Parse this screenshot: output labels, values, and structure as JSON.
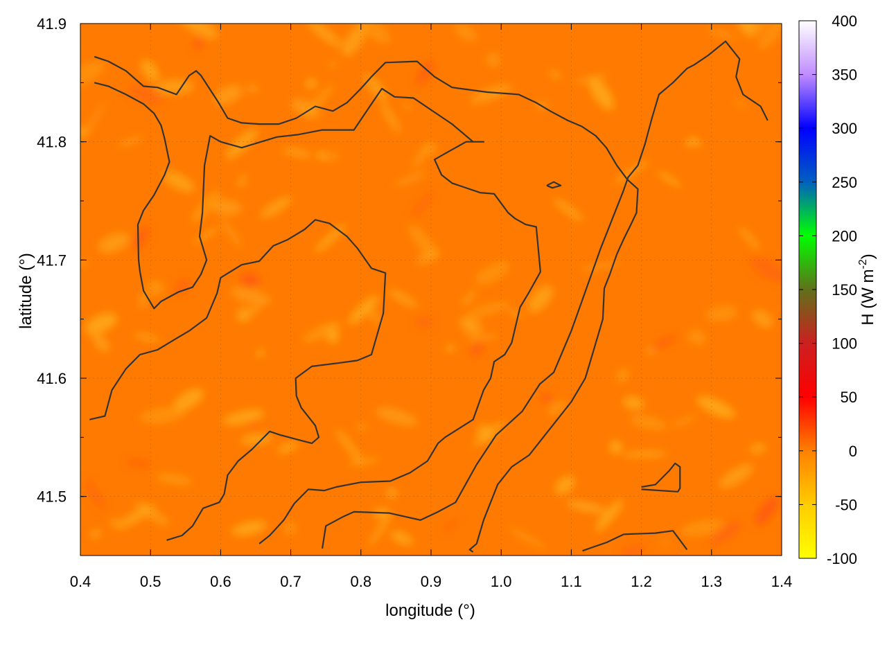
{
  "chart_data": {
    "type": "heatmap",
    "title": "",
    "xlabel": "longitude (°)",
    "ylabel": "latitude (°)",
    "xlim": [
      0.4,
      1.4
    ],
    "ylim": [
      41.45,
      41.9
    ],
    "x_ticks": [
      "0.4",
      "0.5",
      "0.6",
      "0.7",
      "0.8",
      "0.9",
      "1.0",
      "1.1",
      "1.2",
      "1.3",
      "1.4"
    ],
    "y_ticks": [
      "41.5",
      "41.6",
      "41.7",
      "41.8",
      "41.9"
    ],
    "y_tick_values": [
      41.5,
      41.6,
      41.7,
      41.8,
      41.9
    ],
    "grid": true,
    "colorbar": {
      "label": "H (W m-2)",
      "min": -100,
      "max": 400,
      "ticks": [
        "-100",
        "-50",
        "0",
        "50",
        "100",
        "150",
        "200",
        "250",
        "300",
        "350",
        "400"
      ],
      "palette": [
        {
          "value": -100,
          "color": "#ffff00"
        },
        {
          "value": -50,
          "color": "#ffcc00"
        },
        {
          "value": 0,
          "color": "#ff8000"
        },
        {
          "value": 50,
          "color": "#ff0000"
        },
        {
          "value": 100,
          "color": "#cc2020"
        },
        {
          "value": 150,
          "color": "#60701a"
        },
        {
          "value": 200,
          "color": "#00ff00"
        },
        {
          "value": 250,
          "color": "#0060c0"
        },
        {
          "value": 300,
          "color": "#0000ff"
        },
        {
          "value": 350,
          "color": "#c08cff"
        },
        {
          "value": 400,
          "color": "#ffffff"
        }
      ]
    },
    "field_summary": {
      "dominant_value": -5,
      "range_shown": [
        -40,
        15
      ],
      "dominant_color": "#ff7a00",
      "light_streak_color": "#ffa81a",
      "hot_spot_color": "#ff5a10"
    },
    "contours": [
      [
        [
          0.42,
          41.872
        ],
        [
          0.44,
          41.868
        ],
        [
          0.465,
          41.86
        ],
        [
          0.49,
          41.847
        ],
        [
          0.51,
          41.846
        ],
        [
          0.537,
          41.84
        ],
        [
          0.555,
          41.856
        ],
        [
          0.565,
          41.86
        ],
        [
          0.572,
          41.856
        ],
        [
          0.596,
          41.834
        ],
        [
          0.61,
          41.82
        ],
        [
          0.63,
          41.816
        ],
        [
          0.655,
          41.815
        ],
        [
          0.683,
          41.815
        ],
        [
          0.708,
          41.82
        ],
        [
          0.735,
          41.83
        ],
        [
          0.76,
          41.826
        ],
        [
          0.78,
          41.833
        ],
        [
          0.8,
          41.845
        ],
        [
          0.815,
          41.855
        ],
        [
          0.835,
          41.867
        ],
        [
          0.88,
          41.868
        ],
        [
          0.905,
          41.855
        ],
        [
          0.93,
          41.846
        ],
        [
          0.98,
          41.842
        ],
        [
          1.025,
          41.84
        ],
        [
          1.05,
          41.833
        ],
        [
          1.07,
          41.826
        ],
        [
          1.095,
          41.818
        ],
        [
          1.115,
          41.813
        ],
        [
          1.135,
          41.805
        ],
        [
          1.15,
          41.795
        ],
        [
          1.165,
          41.78
        ],
        [
          1.18,
          41.768
        ],
        [
          1.195,
          41.76
        ],
        [
          1.193,
          41.74
        ],
        [
          1.185,
          41.73
        ],
        [
          1.175,
          41.718
        ],
        [
          1.165,
          41.705
        ],
        [
          1.155,
          41.688
        ],
        [
          1.147,
          41.676
        ],
        [
          1.145,
          41.65
        ],
        [
          1.14,
          41.64
        ],
        [
          1.13,
          41.62
        ],
        [
          1.12,
          41.6
        ],
        [
          1.1,
          41.58
        ],
        [
          1.08,
          41.565
        ],
        [
          1.06,
          41.55
        ],
        [
          1.04,
          41.535
        ],
        [
          1.015,
          41.525
        ],
        [
          0.995,
          41.51
        ],
        [
          0.975,
          41.48
        ],
        [
          0.965,
          41.46
        ],
        [
          0.955,
          41.455
        ],
        [
          0.96,
          41.453
        ]
      ],
      [
        [
          0.42,
          41.85
        ],
        [
          0.44,
          41.847
        ],
        [
          0.465,
          41.84
        ],
        [
          0.49,
          41.832
        ],
        [
          0.505,
          41.824
        ],
        [
          0.515,
          41.814
        ],
        [
          0.52,
          41.803
        ],
        [
          0.527,
          41.783
        ],
        [
          0.52,
          41.772
        ],
        [
          0.505,
          41.755
        ],
        [
          0.49,
          41.742
        ],
        [
          0.482,
          41.73
        ],
        [
          0.483,
          41.7
        ],
        [
          0.485,
          41.69
        ],
        [
          0.49,
          41.674
        ],
        [
          0.505,
          41.659
        ],
        [
          0.515,
          41.665
        ],
        [
          0.54,
          41.673
        ],
        [
          0.56,
          41.677
        ],
        [
          0.572,
          41.688
        ],
        [
          0.58,
          41.7
        ],
        [
          0.57,
          41.72
        ],
        [
          0.574,
          41.74
        ],
        [
          0.577,
          41.78
        ],
        [
          0.585,
          41.805
        ],
        [
          0.6,
          41.8
        ],
        [
          0.63,
          41.795
        ],
        [
          0.68,
          41.804
        ],
        [
          0.71,
          41.806
        ],
        [
          0.745,
          41.81
        ],
        [
          0.79,
          41.81
        ],
        [
          0.815,
          41.832
        ],
        [
          0.83,
          41.845
        ],
        [
          0.848,
          41.838
        ],
        [
          0.875,
          41.837
        ],
        [
          0.9,
          41.827
        ],
        [
          0.93,
          41.815
        ],
        [
          0.96,
          41.8
        ],
        [
          0.975,
          41.8
        ],
        [
          0.95,
          41.8
        ],
        [
          0.92,
          41.79
        ],
        [
          0.905,
          41.785
        ],
        [
          0.915,
          41.772
        ],
        [
          0.93,
          41.765
        ],
        [
          0.945,
          41.762
        ],
        [
          0.97,
          41.757
        ],
        [
          0.99,
          41.756
        ],
        [
          1.01,
          41.74
        ],
        [
          1.02,
          41.735
        ],
        [
          1.035,
          41.73
        ],
        [
          1.05,
          41.728
        ],
        [
          1.056,
          41.69
        ],
        [
          1.04,
          41.673
        ],
        [
          1.027,
          41.66
        ],
        [
          1.015,
          41.63
        ],
        [
          1.005,
          41.62
        ],
        [
          0.99,
          41.614
        ],
        [
          0.985,
          41.6
        ],
        [
          0.975,
          41.59
        ],
        [
          0.96,
          41.565
        ],
        [
          0.92,
          41.55
        ],
        [
          0.91,
          41.545
        ],
        [
          0.895,
          41.53
        ],
        [
          0.87,
          41.52
        ],
        [
          0.842,
          41.513
        ],
        [
          0.8,
          41.512
        ],
        [
          0.765,
          41.508
        ],
        [
          0.748,
          41.505
        ],
        [
          0.725,
          41.506
        ],
        [
          0.705,
          41.494
        ],
        [
          0.69,
          41.48
        ],
        [
          0.67,
          41.467
        ],
        [
          0.655,
          41.46
        ]
      ],
      [
        [
          0.413,
          41.565
        ],
        [
          0.435,
          41.568
        ],
        [
          0.445,
          41.59
        ],
        [
          0.465,
          41.608
        ],
        [
          0.485,
          41.62
        ],
        [
          0.51,
          41.624
        ],
        [
          0.535,
          41.633
        ],
        [
          0.555,
          41.64
        ],
        [
          0.58,
          41.651
        ],
        [
          0.595,
          41.672
        ],
        [
          0.6,
          41.685
        ],
        [
          0.63,
          41.696
        ],
        [
          0.655,
          41.699
        ],
        [
          0.675,
          41.712
        ],
        [
          0.695,
          41.717
        ],
        [
          0.72,
          41.726
        ],
        [
          0.735,
          41.734
        ],
        [
          0.755,
          41.731
        ],
        [
          0.78,
          41.72
        ],
        [
          0.795,
          41.71
        ],
        [
          0.815,
          41.693
        ],
        [
          0.835,
          41.689
        ],
        [
          0.832,
          41.655
        ],
        [
          0.815,
          41.62
        ],
        [
          0.795,
          41.615
        ],
        [
          0.77,
          41.613
        ],
        [
          0.73,
          41.61
        ],
        [
          0.707,
          41.6
        ],
        [
          0.708,
          41.585
        ],
        [
          0.715,
          41.575
        ],
        [
          0.735,
          41.56
        ],
        [
          0.74,
          41.55
        ],
        [
          0.73,
          41.545
        ],
        [
          0.71,
          41.548
        ],
        [
          0.685,
          41.552
        ],
        [
          0.67,
          41.555
        ],
        [
          0.645,
          41.54
        ],
        [
          0.625,
          41.53
        ],
        [
          0.61,
          41.518
        ],
        [
          0.605,
          41.502
        ],
        [
          0.598,
          41.495
        ],
        [
          0.575,
          41.49
        ],
        [
          0.56,
          41.475
        ],
        [
          0.545,
          41.467
        ],
        [
          0.523,
          41.463
        ]
      ],
      [
        [
          0.745,
          41.456
        ],
        [
          0.75,
          41.475
        ],
        [
          0.775,
          41.483
        ],
        [
          0.79,
          41.487
        ],
        [
          0.84,
          41.486
        ],
        [
          0.885,
          41.48
        ],
        [
          0.91,
          41.487
        ],
        [
          0.935,
          41.495
        ],
        [
          0.965,
          41.527
        ],
        [
          0.993,
          41.552
        ],
        [
          1.03,
          41.572
        ],
        [
          1.055,
          41.595
        ],
        [
          1.075,
          41.605
        ],
        [
          1.1,
          41.64
        ],
        [
          1.115,
          41.665
        ],
        [
          1.13,
          41.69
        ],
        [
          1.142,
          41.71
        ],
        [
          1.158,
          41.734
        ],
        [
          1.174,
          41.758
        ],
        [
          1.181,
          41.77
        ],
        [
          1.195,
          41.78
        ],
        [
          1.205,
          41.798
        ],
        [
          1.215,
          41.82
        ],
        [
          1.225,
          41.84
        ],
        [
          1.245,
          41.85
        ],
        [
          1.265,
          41.862
        ],
        [
          1.275,
          41.865
        ],
        [
          1.295,
          41.873
        ],
        [
          1.32,
          41.885
        ],
        [
          1.34,
          41.87
        ],
        [
          1.335,
          41.855
        ],
        [
          1.345,
          41.84
        ],
        [
          1.37,
          41.83
        ],
        [
          1.38,
          41.818
        ]
      ],
      [
        [
          1.065,
          41.763
        ],
        [
          1.075,
          41.766
        ],
        [
          1.085,
          41.763
        ],
        [
          1.073,
          41.761
        ],
        [
          1.065,
          41.763
        ]
      ],
      [
        [
          1.2,
          41.508
        ],
        [
          1.22,
          41.51
        ],
        [
          1.24,
          41.522
        ],
        [
          1.248,
          41.528
        ],
        [
          1.255,
          41.525
        ],
        [
          1.255,
          41.507
        ],
        [
          1.252,
          41.504
        ],
        [
          1.2,
          41.506
        ]
      ],
      [
        [
          1.116,
          41.454
        ],
        [
          1.13,
          41.457
        ],
        [
          1.15,
          41.461
        ],
        [
          1.175,
          41.468
        ],
        [
          1.22,
          41.469
        ],
        [
          1.245,
          41.471
        ],
        [
          1.265,
          41.455
        ]
      ]
    ]
  }
}
